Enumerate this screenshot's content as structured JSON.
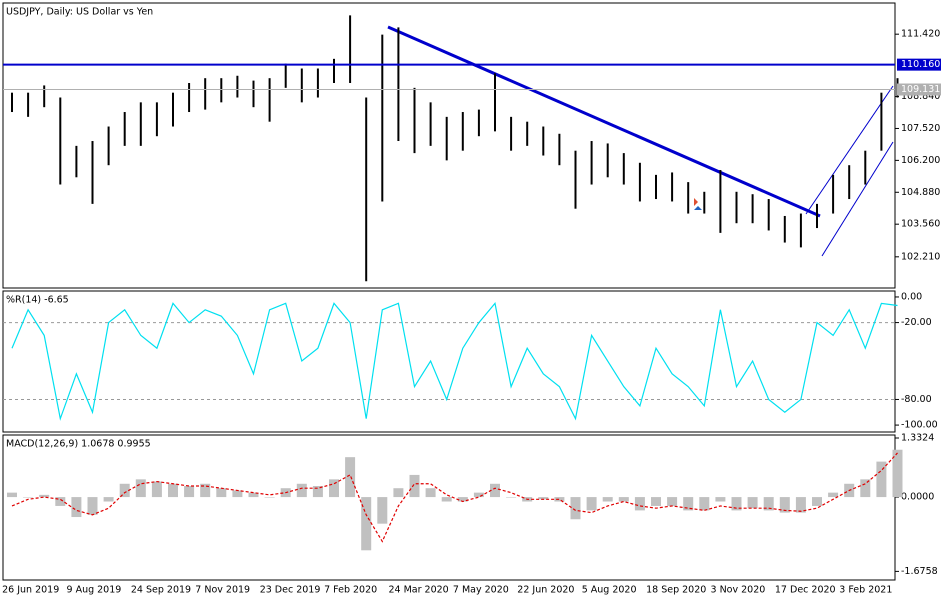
{
  "chart_data": [
    {
      "type": "ohlc",
      "title": "USDJPY, Daily:  US Dollar vs Yen",
      "color": "#000000",
      "categories": [
        null,
        "26 Jun 2019",
        null,
        null,
        null,
        "9 Aug 2019",
        null,
        null,
        null,
        "24 Sep 2019",
        null,
        null,
        null,
        "7 Nov 2019",
        null,
        null,
        null,
        "23 Dec 2019",
        null,
        null,
        null,
        "7 Feb 2020",
        null,
        null,
        null,
        "24 Mar 2020",
        null,
        null,
        null,
        "7 May 2020",
        null,
        null,
        null,
        "22 Jun 2020",
        null,
        null,
        null,
        "5 Aug 2020",
        null,
        null,
        null,
        "18 Sep 2020",
        null,
        null,
        null,
        "3 Nov 2020",
        null,
        null,
        null,
        "17 Dec 2020",
        null,
        null,
        null,
        "3 Feb 2021",
        null,
        null
      ],
      "high": [
        109.0,
        109.0,
        109.3,
        108.8,
        106.8,
        107.0,
        107.6,
        108.2,
        108.6,
        108.6,
        109.0,
        109.4,
        109.6,
        109.6,
        109.7,
        109.5,
        109.6,
        110.2,
        110.0,
        110.0,
        110.4,
        112.2,
        108.8,
        111.4,
        111.7,
        109.2,
        108.6,
        108.0,
        108.2,
        108.3,
        109.8,
        108.0,
        107.8,
        107.6,
        107.3,
        106.6,
        107.0,
        106.9,
        106.5,
        106.1,
        105.6,
        105.7,
        105.3,
        104.9,
        105.8,
        104.9,
        104.8,
        104.6,
        103.9,
        104.0,
        104.4,
        105.6,
        106.0,
        106.6,
        109.0,
        109.6
      ],
      "low": [
        108.2,
        108.0,
        108.4,
        105.2,
        105.5,
        104.4,
        106.0,
        106.8,
        106.8,
        107.2,
        107.6,
        108.2,
        108.3,
        108.6,
        108.8,
        108.4,
        107.8,
        109.2,
        108.6,
        108.8,
        109.4,
        109.4,
        101.2,
        104.5,
        107.0,
        106.5,
        106.8,
        106.2,
        106.6,
        107.2,
        107.4,
        106.6,
        106.8,
        106.4,
        106.0,
        104.2,
        105.2,
        105.5,
        105.2,
        104.5,
        104.6,
        104.5,
        104.0,
        104.0,
        103.2,
        103.6,
        103.6,
        103.3,
        102.8,
        102.6,
        103.4,
        104.0,
        104.6,
        105.2,
        106.6,
        108.8
      ],
      "ylim": [
        100.92,
        112.71
      ],
      "yticks": [
        {
          "value": 111.42,
          "label": "111.420"
        },
        {
          "value": 108.84,
          "label": "108.840"
        },
        {
          "value": 107.52,
          "label": "107.520"
        },
        {
          "value": 106.2,
          "label": "106.200"
        },
        {
          "value": 104.88,
          "label": "104.880"
        },
        {
          "value": 103.56,
          "label": "103.560"
        },
        {
          "value": 102.21,
          "label": "102.210"
        }
      ],
      "levels": [
        {
          "value": 110.16,
          "label": "110.160",
          "color": "#0000cc"
        },
        {
          "value": 109.131,
          "label": "109.131",
          "color": "#b0b0b0"
        }
      ]
    },
    {
      "type": "line",
      "title": "%R(14) -6.65",
      "color": "#00e0f0",
      "values": [
        -40,
        -10,
        -30,
        -95,
        -60,
        -90,
        -20,
        -10,
        -30,
        -40,
        -5,
        -20,
        -10,
        -15,
        -30,
        -60,
        -10,
        -5,
        -50,
        -40,
        -5,
        -20,
        -95,
        -10,
        -5,
        -70,
        -50,
        -80,
        -40,
        -20,
        -5,
        -70,
        -40,
        -60,
        -70,
        -95,
        -30,
        -50,
        -70,
        -85,
        -40,
        -60,
        -70,
        -85,
        -10,
        -70,
        -50,
        -80,
        -90,
        -80,
        -20,
        -30,
        -10,
        -40,
        -5,
        -6.65
      ],
      "ylim": [
        -105.4,
        4.65
      ],
      "yticks": [
        {
          "value": 0,
          "label": "0.00"
        },
        {
          "value": -20,
          "label": "-20.00"
        },
        {
          "value": -80,
          "label": "-80.00"
        },
        {
          "value": -100,
          "label": "-100.00"
        }
      ],
      "levels": [
        -20,
        -80
      ]
    },
    {
      "type": "macd",
      "title": "MACD(12,26,9) 1.0678 0.9955",
      "hist_color": "#c0c0c0",
      "signal_color": "#e00000",
      "histogram": [
        0.1,
        0.0,
        0.05,
        -0.2,
        -0.45,
        -0.4,
        -0.1,
        0.3,
        0.4,
        0.35,
        0.3,
        0.25,
        0.3,
        0.2,
        0.15,
        0.1,
        0.0,
        0.2,
        0.3,
        0.25,
        0.4,
        0.9,
        -1.2,
        -0.6,
        0.2,
        0.5,
        0.2,
        -0.1,
        -0.1,
        0.1,
        0.3,
        0.0,
        -0.1,
        -0.05,
        -0.1,
        -0.5,
        -0.3,
        -0.1,
        -0.1,
        -0.3,
        -0.2,
        -0.2,
        -0.3,
        -0.3,
        -0.1,
        -0.3,
        -0.25,
        -0.3,
        -0.35,
        -0.35,
        -0.2,
        0.1,
        0.3,
        0.4,
        0.8,
        1.0678
      ],
      "signal": [
        -0.2,
        -0.05,
        0.0,
        -0.05,
        -0.3,
        -0.4,
        -0.25,
        0.1,
        0.3,
        0.35,
        0.3,
        0.25,
        0.25,
        0.2,
        0.15,
        0.1,
        0.05,
        0.1,
        0.2,
        0.2,
        0.3,
        0.5,
        -0.4,
        -1.0,
        -0.2,
        0.3,
        0.3,
        0.05,
        -0.1,
        0.0,
        0.2,
        0.1,
        -0.05,
        -0.05,
        -0.05,
        -0.3,
        -0.35,
        -0.2,
        -0.1,
        -0.2,
        -0.25,
        -0.2,
        -0.25,
        -0.3,
        -0.2,
        -0.25,
        -0.25,
        -0.25,
        -0.3,
        -0.32,
        -0.25,
        -0.05,
        0.15,
        0.3,
        0.6,
        0.9955
      ],
      "ylim": [
        -1.87,
        1.4
      ],
      "yticks": [
        {
          "value": 1.3324,
          "label": "1.3324"
        },
        {
          "value": 0,
          "label": "0.0000"
        },
        {
          "value": -1.6758,
          "label": "-1.6758"
        }
      ]
    }
  ]
}
